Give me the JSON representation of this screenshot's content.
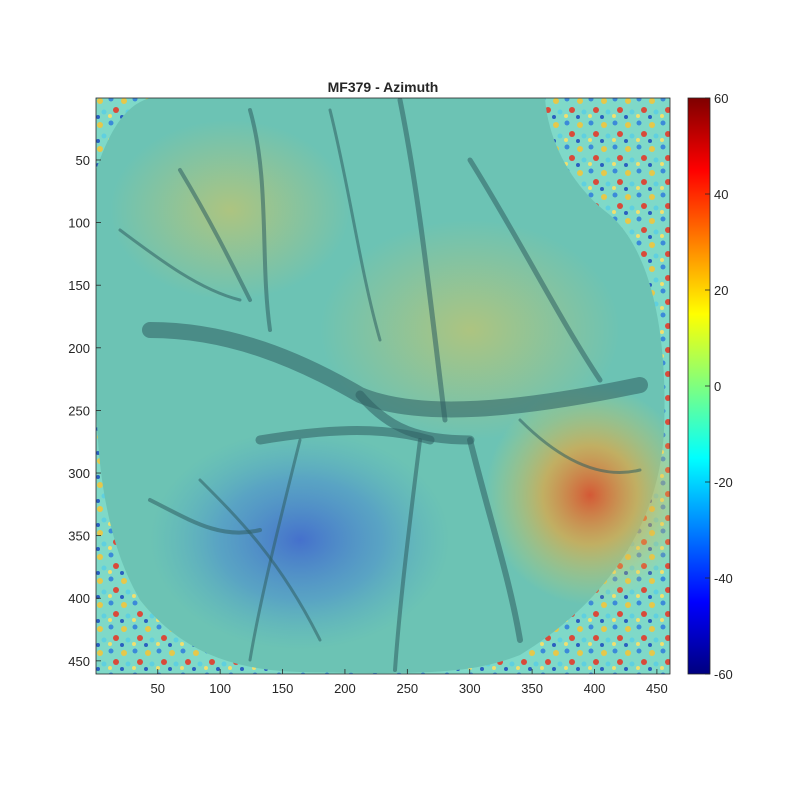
{
  "figure": {
    "title": "MF379 - Azimuth",
    "image_description_type": "cortical vasculature with azimuth retinotopic map overlay",
    "x_axis": {
      "range": [
        0.5,
        460.5
      ],
      "ticks": [
        50,
        100,
        150,
        200,
        250,
        300,
        350,
        400,
        450
      ]
    },
    "y_axis": {
      "range": [
        0.5,
        460.5
      ],
      "direction": "reverse",
      "ticks": [
        50,
        100,
        150,
        200,
        250,
        300,
        350,
        400,
        450
      ]
    },
    "colorbar": {
      "colormap": "jet",
      "range": [
        -60,
        60
      ],
      "ticks": [
        60,
        40,
        20,
        0,
        -20,
        -40,
        -60
      ]
    },
    "colors": {
      "overlay_base": "#4fc3b0",
      "hot_spot": "#e0603a",
      "cold_spot": "#3b6fd6",
      "vessel": "#2f5e63"
    }
  }
}
